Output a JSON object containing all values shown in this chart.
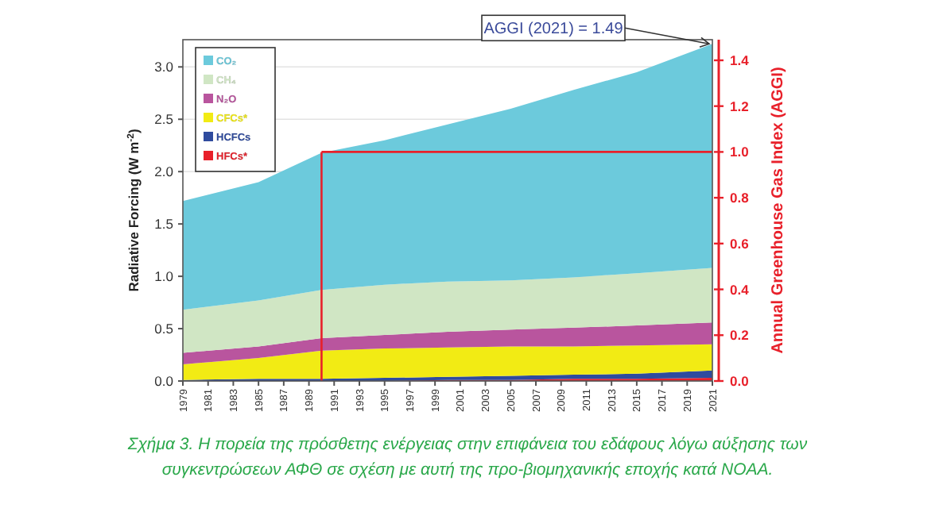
{
  "chart_data": {
    "type": "area",
    "stacked": true,
    "ylabel": "Radiative Forcing (W m$^{-2}$)",
    "y2label": "Annual Greenhouse Gas Index (AGGI)",
    "x": [
      1979,
      1985,
      1990,
      1995,
      2000,
      2005,
      2010,
      2015,
      2021
    ],
    "xlim": [
      1979,
      2021
    ],
    "xticks": [
      1979,
      1981,
      1983,
      1985,
      1987,
      1989,
      1991,
      1993,
      1995,
      1997,
      1999,
      2001,
      2003,
      2005,
      2007,
      2009,
      2011,
      2013,
      2015,
      2017,
      2019,
      2021
    ],
    "ylim": [
      0,
      3.26
    ],
    "yticks": [
      {
        "value": 0,
        "label": "0.0"
      },
      {
        "value": 0.5,
        "label": "0.5"
      },
      {
        "value": 1,
        "label": "1.0"
      },
      {
        "value": 1.5,
        "label": "1.5"
      },
      {
        "value": 2,
        "label": "2.0"
      },
      {
        "value": 2.5,
        "label": "2.5"
      },
      {
        "value": 3,
        "label": "3.0"
      }
    ],
    "y2lim": [
      0,
      1.49
    ],
    "y2ticks": [
      {
        "value": 0,
        "label": "0.0"
      },
      {
        "value": 0.2,
        "label": "0.2"
      },
      {
        "value": 0.4,
        "label": "0.4"
      },
      {
        "value": 0.6,
        "label": "0.6"
      },
      {
        "value": 0.8,
        "label": "0.8"
      },
      {
        "value": 1,
        "label": "1.0"
      },
      {
        "value": 1.2,
        "label": "1.2"
      },
      {
        "value": 1.4,
        "label": "1.4"
      }
    ],
    "series": [
      {
        "name": "HFCs*",
        "color": "#e8202a",
        "values": [
          0,
          0,
          0,
          0,
          0.01,
          0.01,
          0.02,
          0.02,
          0.03
        ]
      },
      {
        "name": "HCFCs",
        "color": "#2f4b9e",
        "values": [
          0.01,
          0.02,
          0.02,
          0.03,
          0.03,
          0.04,
          0.04,
          0.05,
          0.07
        ]
      },
      {
        "name": "CFCs*",
        "color": "#f2eb14",
        "values": [
          0.15,
          0.2,
          0.27,
          0.28,
          0.28,
          0.28,
          0.27,
          0.27,
          0.25
        ]
      },
      {
        "name": "N₂O",
        "color": "#b9559e",
        "values": [
          0.11,
          0.11,
          0.12,
          0.13,
          0.15,
          0.16,
          0.18,
          0.19,
          0.21
        ]
      },
      {
        "name": "CH₄",
        "color": "#d0e6c4",
        "values": [
          0.41,
          0.44,
          0.46,
          0.48,
          0.48,
          0.47,
          0.48,
          0.5,
          0.52
        ]
      },
      {
        "name": "CO₂",
        "color": "#6ccadc",
        "values": [
          1.04,
          1.13,
          1.31,
          1.38,
          1.5,
          1.64,
          1.79,
          1.92,
          2.14
        ]
      }
    ],
    "ref_lines": [
      {
        "axis": "x",
        "value": 1990,
        "color": "#e8202a"
      },
      {
        "axis": "y2",
        "value": 1,
        "color": "#e8202a"
      }
    ],
    "legend": "top left",
    "grid": "y",
    "annotations": [
      {
        "text": "AGGI (2021) = 1.49",
        "x": 2021,
        "y": 3.22
      },
      "Σχήμα 3. Η πορεία της πρόσθετης ενέργειας στην επιφάνεια του εδάφους λόγω αύξησης των",
      "συγκεντρώσεων ΑΦΘ σε σχέση με αυτή της προ-βιομηχανικής εποχής κατά NOAA."
    ]
  }
}
